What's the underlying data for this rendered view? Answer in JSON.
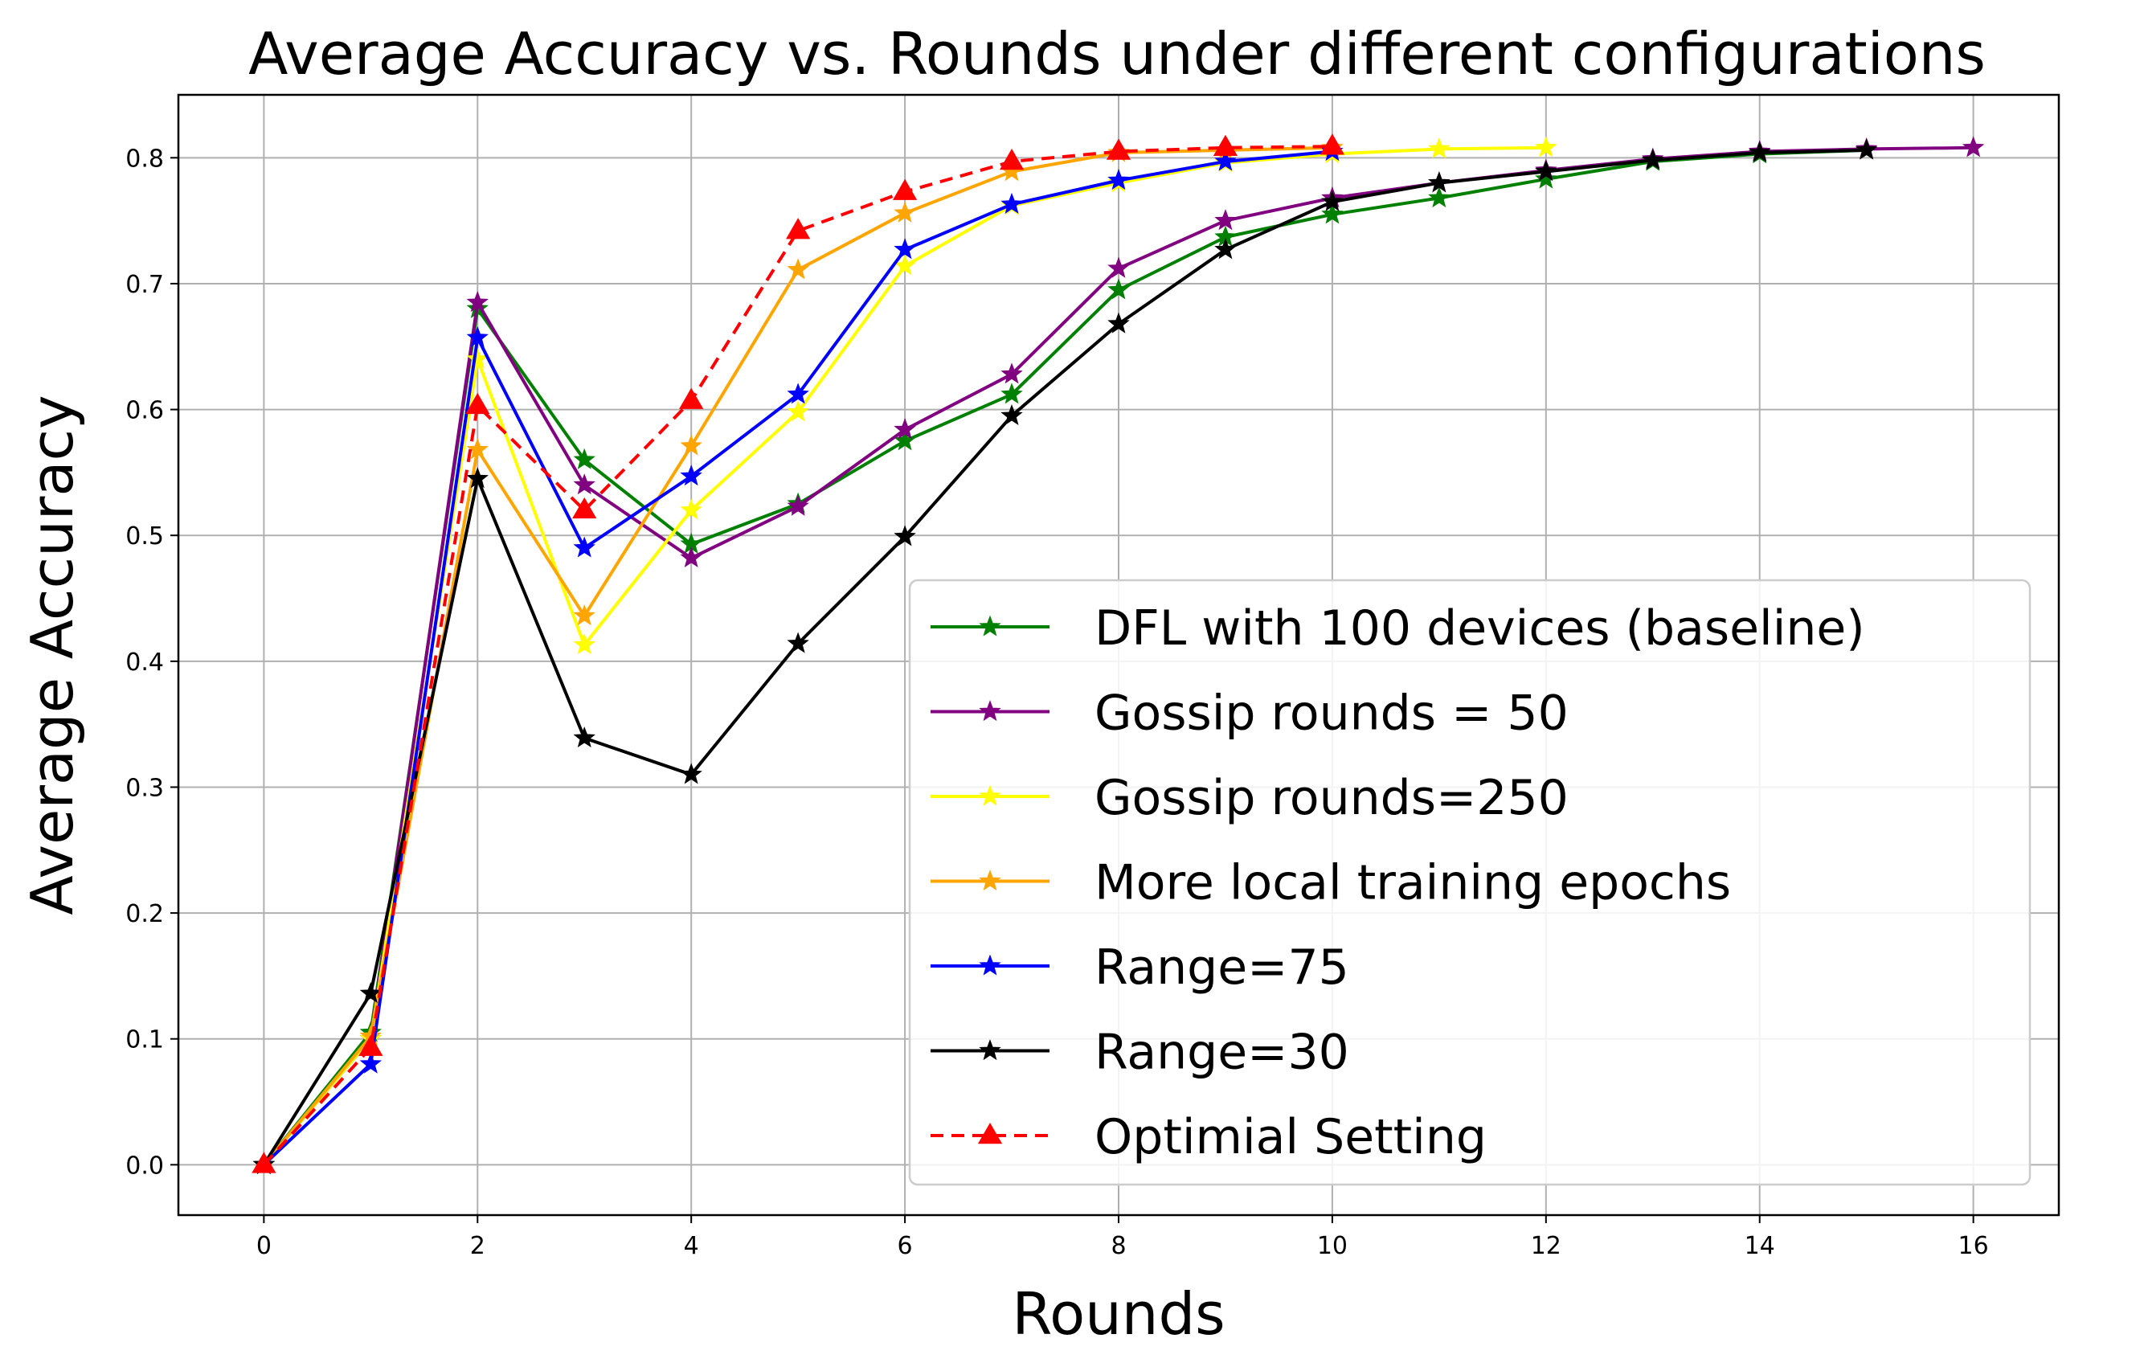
{
  "chart_data": {
    "type": "line",
    "title": "Average Accuracy vs. Rounds under different configurations",
    "xlabel": "Rounds",
    "ylabel": "Average Accuracy",
    "xlim": [
      -0.8,
      16.8
    ],
    "ylim": [
      -0.04,
      0.85
    ],
    "xticks": [
      0,
      2,
      4,
      6,
      8,
      10,
      12,
      14,
      16
    ],
    "yticks": [
      0.0,
      0.1,
      0.2,
      0.3,
      0.4,
      0.5,
      0.6,
      0.7,
      0.8
    ],
    "xtick_labels": [
      "0",
      "2",
      "4",
      "6",
      "8",
      "10",
      "12",
      "14",
      "16"
    ],
    "ytick_labels": [
      "0.0",
      "0.1",
      "0.2",
      "0.3",
      "0.4",
      "0.5",
      "0.6",
      "0.7",
      "0.8"
    ],
    "grid": true,
    "legend_position": "lower-right",
    "series": [
      {
        "name": "DFL with 100 devices (baseline)",
        "color": "#008000",
        "linestyle": "solid",
        "marker": "star",
        "x": [
          0,
          1,
          2,
          3,
          4,
          5,
          6,
          7,
          8,
          9,
          10,
          11,
          12,
          13,
          14,
          15
        ],
        "values": [
          0.0,
          0.105,
          0.68,
          0.56,
          0.493,
          0.525,
          0.575,
          0.612,
          0.695,
          0.737,
          0.755,
          0.768,
          0.783,
          0.797,
          0.803,
          0.806
        ]
      },
      {
        "name": "Gossip rounds = 50",
        "color": "#800080",
        "linestyle": "solid",
        "marker": "star",
        "x": [
          0,
          1,
          2,
          3,
          4,
          5,
          6,
          7,
          8,
          9,
          10,
          11,
          12,
          13,
          14,
          15,
          16
        ],
        "values": [
          0.0,
          0.1,
          0.685,
          0.54,
          0.482,
          0.523,
          0.584,
          0.628,
          0.712,
          0.75,
          0.768,
          0.78,
          0.79,
          0.799,
          0.805,
          0.807,
          0.808
        ]
      },
      {
        "name": "Gossip rounds=250",
        "color": "#ffff00",
        "linestyle": "solid",
        "marker": "star",
        "x": [
          0,
          1,
          2,
          3,
          4,
          5,
          6,
          7,
          8,
          9,
          10,
          11,
          12
        ],
        "values": [
          0.0,
          0.1,
          0.64,
          0.413,
          0.52,
          0.598,
          0.714,
          0.762,
          0.78,
          0.796,
          0.803,
          0.807,
          0.808
        ]
      },
      {
        "name": "More local training epochs",
        "color": "#ffa500",
        "linestyle": "solid",
        "marker": "star",
        "x": [
          0,
          1,
          2,
          3,
          4,
          5,
          6,
          7,
          8,
          9,
          10
        ],
        "values": [
          0.0,
          0.102,
          0.568,
          0.436,
          0.571,
          0.711,
          0.756,
          0.789,
          0.804,
          0.806,
          0.808
        ]
      },
      {
        "name": "Range=75",
        "color": "#0000ff",
        "linestyle": "solid",
        "marker": "star",
        "x": [
          0,
          1,
          2,
          3,
          4,
          5,
          6,
          7,
          8,
          9,
          10
        ],
        "values": [
          0.0,
          0.08,
          0.657,
          0.49,
          0.547,
          0.612,
          0.727,
          0.763,
          0.782,
          0.797,
          0.805
        ]
      },
      {
        "name": "Range=30",
        "color": "#000000",
        "linestyle": "solid",
        "marker": "star",
        "x": [
          0,
          1,
          2,
          3,
          4,
          5,
          6,
          7,
          8,
          9,
          10,
          11,
          12,
          13,
          14,
          15
        ],
        "values": [
          0.0,
          0.136,
          0.545,
          0.339,
          0.31,
          0.414,
          0.499,
          0.595,
          0.668,
          0.727,
          0.765,
          0.78,
          0.789,
          0.798,
          0.804,
          0.806
        ]
      },
      {
        "name": "Optimial Setting",
        "color": "#ff0000",
        "linestyle": "dashed",
        "marker": "triangle",
        "x": [
          0,
          1,
          2,
          3,
          4,
          5,
          6,
          7,
          8,
          9,
          10
        ],
        "values": [
          0.0,
          0.093,
          0.603,
          0.52,
          0.607,
          0.742,
          0.773,
          0.797,
          0.805,
          0.808,
          0.809
        ]
      }
    ]
  }
}
